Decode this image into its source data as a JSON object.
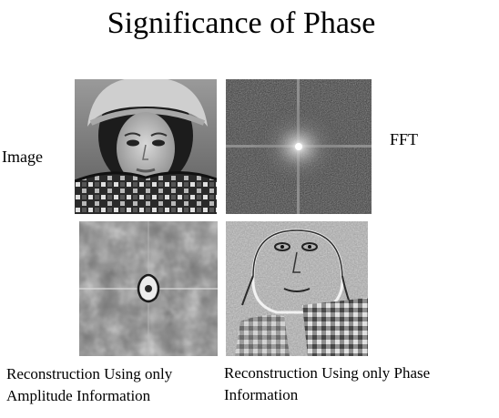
{
  "slide": {
    "title": "Significance of Phase",
    "row_label_image": "Image",
    "row_label_fft": "FFT",
    "caption_amplitude": "Reconstruction Using only Amplitude Information",
    "caption_phase": "Reconstruction Using only Phase Information"
  },
  "panels": {
    "original": {
      "subject": "grayscale portrait of woman wearing knit hat and patterned scarf"
    },
    "fft": {
      "subject": "log-magnitude Fourier spectrum with bright center and cross axes"
    },
    "amplitude_recon": {
      "subject": "blotchy gray texture with small bright center blob"
    },
    "phase_recon": {
      "subject": "edge-like gray rendering of the portrait"
    }
  }
}
